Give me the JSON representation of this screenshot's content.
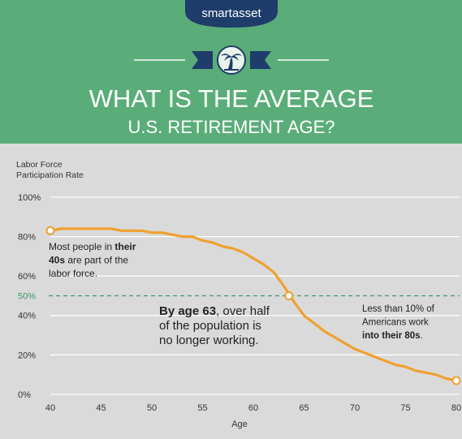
{
  "logo": "smartasset",
  "header": {
    "title_lines": [
      "WHAT IS THE AVERAGE",
      "U.S. RETIREMENT AGE?"
    ]
  },
  "chart_data": {
    "type": "line",
    "ylabel": [
      "Labor Force",
      "Participation Rate"
    ],
    "xlabel": "Age",
    "x": [
      40,
      41,
      42,
      43,
      44,
      45,
      46,
      47,
      48,
      49,
      50,
      51,
      52,
      53,
      54,
      55,
      56,
      57,
      58,
      59,
      60,
      61,
      62,
      63,
      64,
      65,
      66,
      67,
      68,
      69,
      70,
      71,
      72,
      73,
      74,
      75,
      76,
      77,
      78,
      79,
      80
    ],
    "series": [
      {
        "color": "#f0a030",
        "values": [
          83,
          84,
          84,
          84,
          84,
          84,
          84,
          83,
          83,
          83,
          82,
          82,
          81,
          80,
          80,
          78,
          77,
          75,
          74,
          72,
          69,
          66,
          62,
          55,
          47,
          40,
          36,
          32,
          29,
          26,
          23,
          21,
          19,
          17,
          15,
          14,
          12,
          11,
          10,
          8,
          7
        ]
      }
    ],
    "highlight_points": [
      {
        "x": 40,
        "y": 83
      },
      {
        "x": 63.5,
        "y": 50
      },
      {
        "x": 80,
        "y": 7
      }
    ],
    "xlim": [
      40,
      80
    ],
    "xticks": [
      40,
      45,
      50,
      55,
      60,
      65,
      70,
      75,
      80
    ],
    "ylim": [
      0,
      100
    ],
    "yticks": [
      {
        "value": 0,
        "label": "0%"
      },
      {
        "value": 20,
        "label": "20%"
      },
      {
        "value": 40,
        "label": "40%"
      },
      {
        "value": 60,
        "label": "60%"
      },
      {
        "value": 80,
        "label": "80%"
      },
      {
        "value": 100,
        "label": "100%"
      }
    ],
    "reference_line": {
      "value": 50,
      "label": "50%",
      "color": "#3a9a6a"
    },
    "grid": true,
    "annotations": [
      {
        "lines": [
          [
            {
              "text": "Most people in "
            },
            {
              "text": "their",
              "bold": true
            }
          ],
          [
            {
              "text": "40s",
              "bold": true
            },
            {
              "text": " are part of the"
            }
          ],
          [
            {
              "text": "labor force."
            }
          ]
        ]
      },
      {
        "lines": [
          [
            {
              "text": "By age 63",
              "bold": true
            },
            {
              "text": ", over half"
            }
          ],
          [
            {
              "text": "of the population is"
            }
          ],
          [
            {
              "text": "no longer working."
            }
          ]
        ]
      },
      {
        "lines": [
          [
            {
              "text": "Less than 10% of"
            }
          ],
          [
            {
              "text": "Americans work"
            }
          ],
          [
            {
              "text": "into their 80s",
              "bold": true
            },
            {
              "text": "."
            }
          ]
        ]
      }
    ]
  }
}
